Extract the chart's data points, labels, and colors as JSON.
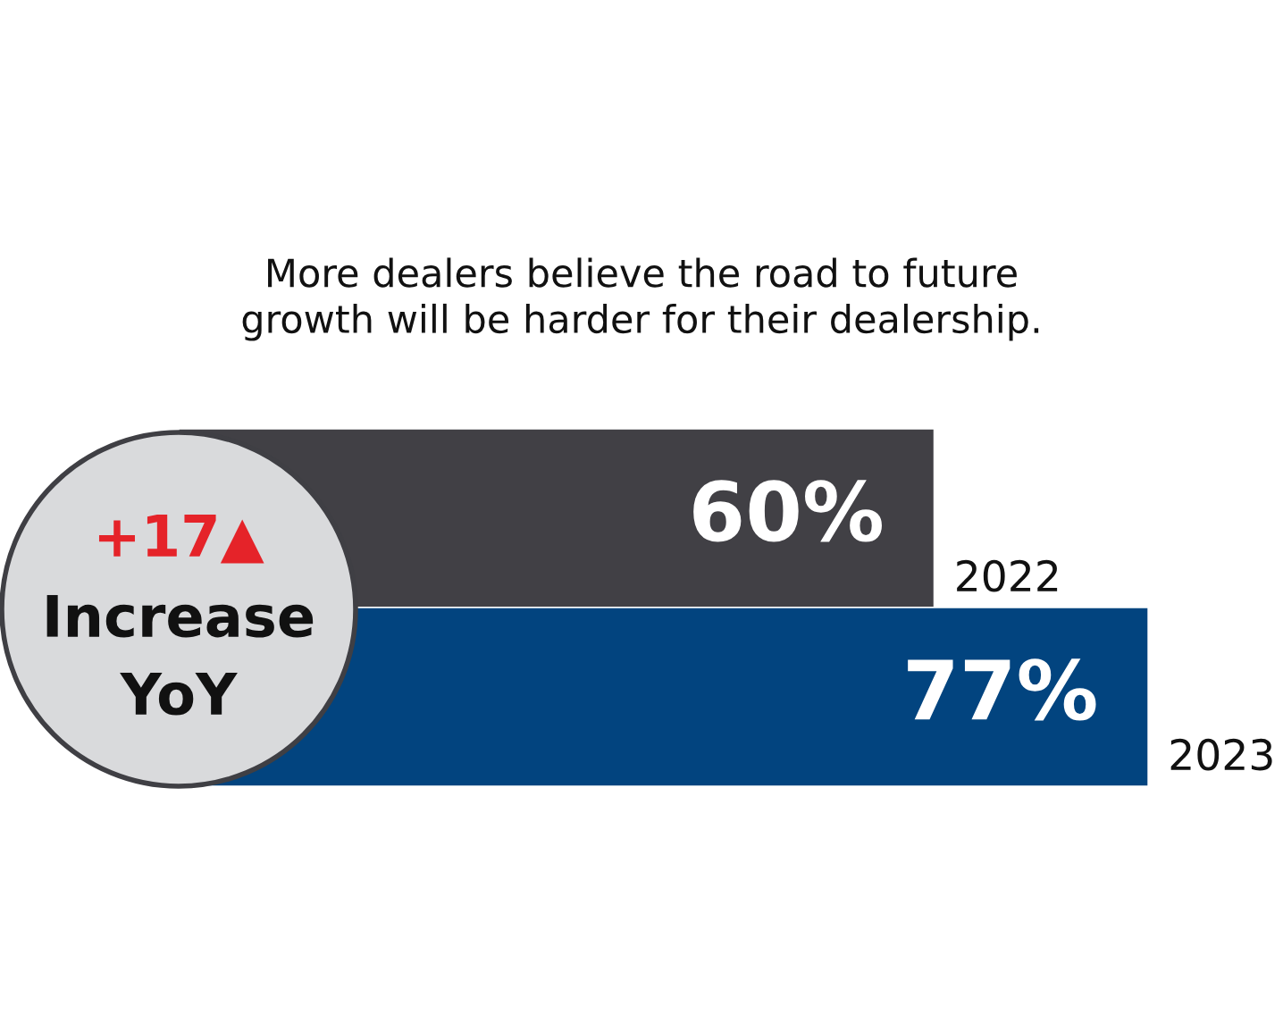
{
  "chart_data": {
    "type": "bar",
    "orientation": "horizontal",
    "title": "More dealers believe the road to future\ngrowth will be harder for their dealership.",
    "categories": [
      "2022",
      "2023"
    ],
    "values": [
      60,
      77
    ],
    "colors": [
      "#414045",
      "#02447f"
    ],
    "value_labels": [
      "60%",
      "77%"
    ],
    "annotations": [
      "+17▲",
      "Increase",
      "YoY"
    ]
  }
}
